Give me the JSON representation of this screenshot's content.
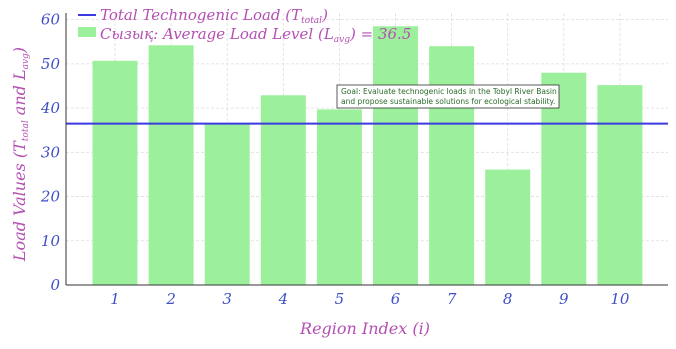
{
  "chart_data": {
    "type": "bar",
    "categories": [
      "1",
      "2",
      "3",
      "4",
      "5",
      "6",
      "7",
      "8",
      "9",
      "10"
    ],
    "series": [
      {
        "name": "Сызық: Average Load Level (L_avg) = 36.5",
        "values": [
          50.7,
          54.2,
          36.4,
          42.9,
          39.7,
          58.5,
          54.0,
          26.1,
          48.0,
          45.2
        ]
      }
    ],
    "reference_line": {
      "name": "Total Technogenic Load (T_total)",
      "value": 36.5
    },
    "xlabel": "Region Index (i)",
    "ylabel": "Load Values (T_total and L_avg)",
    "yticks": [
      0,
      10,
      20,
      30,
      40,
      50,
      60
    ],
    "ylim": [
      0,
      61.5
    ],
    "grid": true,
    "legend_position": "top-left",
    "annotation": {
      "lines": [
        "Goal: Evaluate technogenic loads in the Tobyl River Basin",
        "and propose sustainable solutions for ecological stability."
      ]
    },
    "colors": {
      "bars": "#9df09b",
      "line": "#3a3ae0",
      "text_purple": "#b44fb4",
      "tick_blue": "#3f4fc4",
      "annotation_text": "#2a6b2a"
    }
  }
}
